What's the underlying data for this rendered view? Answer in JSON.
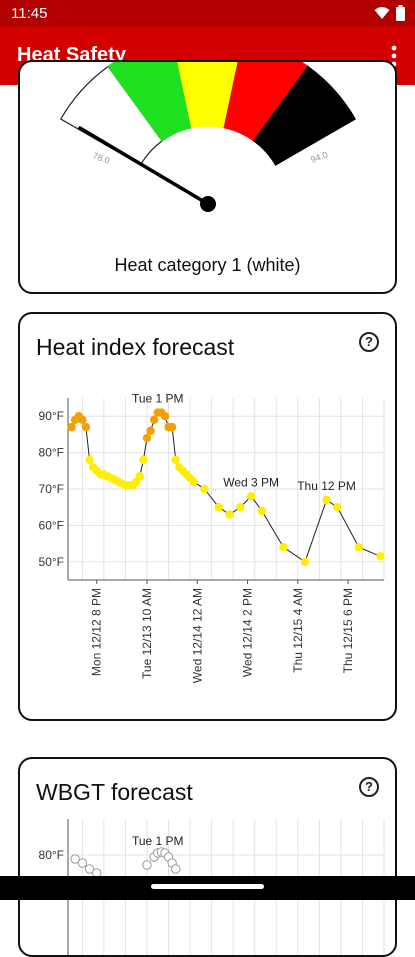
{
  "status_bar": {
    "time": "11:45"
  },
  "app_bar": {
    "title": "Heat Safety"
  },
  "gauge": {
    "min_label": "78.0",
    "max_label": "94.0",
    "category_text": "Heat category 1 (white)",
    "needle_value": 78.0,
    "segments": [
      {
        "color": "#ffffff",
        "name": "white"
      },
      {
        "color": "#1fe01f",
        "name": "green"
      },
      {
        "color": "#ffff00",
        "name": "yellow"
      },
      {
        "color": "#ff0000",
        "name": "red"
      },
      {
        "color": "#000000",
        "name": "black"
      }
    ]
  },
  "heat_index": {
    "title": "Heat index forecast",
    "help_icon": "help-circle-icon",
    "chart_data": {
      "type": "line",
      "y_ticks": [
        "90°F",
        "80°F",
        "70°F",
        "60°F",
        "50°F"
      ],
      "ylim": [
        45,
        95
      ],
      "x_ticks": [
        "Mon 12/12 8 PM",
        "Tue 12/13 10 AM",
        "Wed 12/14 12 AM",
        "Wed 12/14 2 PM",
        "Thu 12/15 4 AM",
        "Thu 12/15 6 PM"
      ],
      "x_tick_hours": [
        20,
        34,
        48,
        62,
        76,
        90
      ],
      "annotations": [
        {
          "text": "Tue 1 PM",
          "hour": 37
        },
        {
          "text": "Wed 3 PM",
          "hour": 63
        },
        {
          "text": "Thu 12 PM",
          "hour": 84
        }
      ],
      "points": [
        {
          "hour": 13,
          "value": 87
        },
        {
          "hour": 14,
          "value": 89
        },
        {
          "hour": 15,
          "value": 90
        },
        {
          "hour": 16,
          "value": 89
        },
        {
          "hour": 17,
          "value": 87
        },
        {
          "hour": 18,
          "value": 78
        },
        {
          "hour": 19,
          "value": 76
        },
        {
          "hour": 20,
          "value": 75
        },
        {
          "hour": 21,
          "value": 74
        },
        {
          "hour": 22,
          "value": 74
        },
        {
          "hour": 23,
          "value": 73.5
        },
        {
          "hour": 24,
          "value": 73
        },
        {
          "hour": 25,
          "value": 72.5
        },
        {
          "hour": 26,
          "value": 72
        },
        {
          "hour": 27,
          "value": 71.5
        },
        {
          "hour": 28,
          "value": 71
        },
        {
          "hour": 29,
          "value": 71
        },
        {
          "hour": 30,
          "value": 71
        },
        {
          "hour": 31,
          "value": 72
        },
        {
          "hour": 32,
          "value": 73.5
        },
        {
          "hour": 33,
          "value": 78
        },
        {
          "hour": 34,
          "value": 84
        },
        {
          "hour": 35,
          "value": 86
        },
        {
          "hour": 36,
          "value": 89
        },
        {
          "hour": 37,
          "value": 91
        },
        {
          "hour": 38,
          "value": 91
        },
        {
          "hour": 39,
          "value": 90
        },
        {
          "hour": 40,
          "value": 87
        },
        {
          "hour": 41,
          "value": 87
        },
        {
          "hour": 42,
          "value": 78
        },
        {
          "hour": 43,
          "value": 76
        },
        {
          "hour": 44,
          "value": 75
        },
        {
          "hour": 45,
          "value": 74
        },
        {
          "hour": 46,
          "value": 73
        },
        {
          "hour": 47,
          "value": 72
        },
        {
          "hour": 50,
          "value": 70
        },
        {
          "hour": 54,
          "value": 65
        },
        {
          "hour": 57,
          "value": 63
        },
        {
          "hour": 60,
          "value": 65
        },
        {
          "hour": 63,
          "value": 68
        },
        {
          "hour": 66,
          "value": 64
        },
        {
          "hour": 72,
          "value": 54
        },
        {
          "hour": 78,
          "value": 50
        },
        {
          "hour": 84,
          "value": 67
        },
        {
          "hour": 87,
          "value": 65
        },
        {
          "hour": 93,
          "value": 54
        },
        {
          "hour": 99,
          "value": 51.5
        }
      ],
      "colors": {
        "hot": "#f5a000",
        "warm": "#ffee00",
        "line": "#222222"
      }
    }
  },
  "wbgt": {
    "title": "WBGT forecast",
    "help_icon": "help-circle-icon",
    "chart_data": {
      "type": "line",
      "y_ticks": [
        "80°F"
      ],
      "annotations": [
        {
          "text": "Tue 1 PM",
          "hour": 37
        }
      ]
    }
  }
}
